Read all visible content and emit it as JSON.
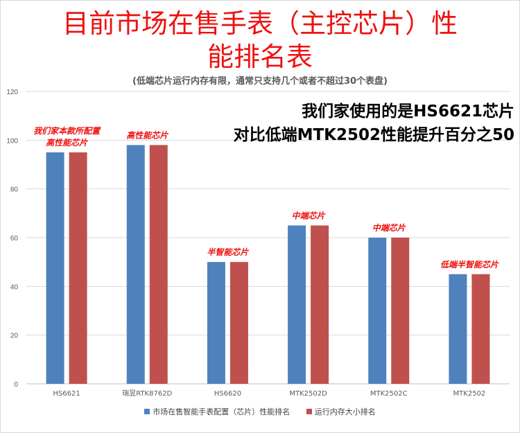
{
  "title_line1": "目前市场在售手表（主控芯片）性",
  "title_line2": "能排名表",
  "subtitle": "(低端芯片运行内存有限，通常只支持几个或者不超过30个表盘)",
  "callout_line1": "我们家使用的是HS6621芯片",
  "callout_line2": "对比低端MTK2502性能提升百分之50",
  "colors": {
    "title": "#ee1111",
    "series1": "#4f81bd",
    "series2": "#c0504d",
    "annotation": "#ee1111"
  },
  "chart_data": {
    "type": "bar",
    "categories": [
      "HS6621",
      "瑞昱RTK8762D",
      "HS6620",
      "MTK2502D",
      "MTK2502C",
      "MTK2502"
    ],
    "series": [
      {
        "name": "市场在售智能手表配置（芯片）性能排名",
        "values": [
          95,
          98,
          50,
          65,
          60,
          45
        ]
      },
      {
        "name": "运行内存大小排名",
        "values": [
          95,
          98,
          50,
          65,
          60,
          45
        ]
      }
    ],
    "ylim": [
      0,
      120
    ],
    "yticks": [
      0,
      20,
      40,
      60,
      80,
      100,
      120
    ],
    "grid": true,
    "legend": "bottom",
    "annotations": [
      {
        "category": "HS6621",
        "lines": [
          "我们家本款所配置",
          "高性能芯片"
        ]
      },
      {
        "category": "瑞昱RTK8762D",
        "lines": [
          "高性能芯片"
        ]
      },
      {
        "category": "HS6620",
        "lines": [
          "半智能芯片"
        ]
      },
      {
        "category": "MTK2502D",
        "lines": [
          "中端芯片"
        ]
      },
      {
        "category": "MTK2502C",
        "lines": [
          "中端芯片"
        ]
      },
      {
        "category": "MTK2502",
        "lines": [
          "低端半智能芯片"
        ]
      }
    ]
  }
}
